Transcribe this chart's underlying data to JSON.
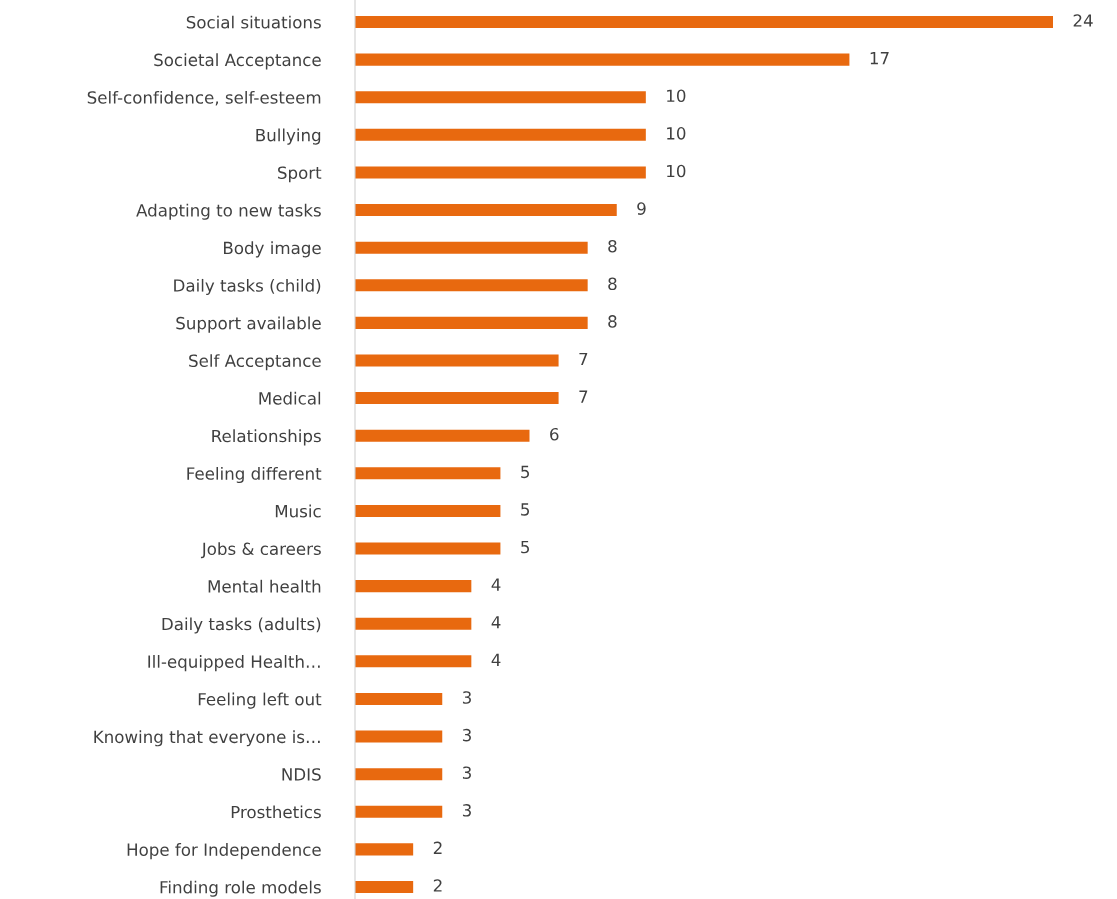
{
  "chart_data": {
    "type": "bar",
    "orientation": "horizontal",
    "categories": [
      "Social situations",
      "Societal Acceptance",
      "Self-confidence, self-esteem",
      "Bullying",
      "Sport",
      "Adapting to new tasks",
      "Body image",
      "Daily tasks (child)",
      "Support available",
      "Self Acceptance",
      "Medical",
      "Relationships",
      "Feeling different",
      "Music",
      "Jobs & careers",
      "Mental health",
      "Daily tasks (adults)",
      "Ill-equipped Health…",
      "Feeling left out",
      "Knowing that everyone is…",
      "NDIS",
      "Prosthetics",
      "Hope for Independence",
      "Finding role models"
    ],
    "values": [
      24,
      17,
      10,
      10,
      10,
      9,
      8,
      8,
      8,
      7,
      7,
      6,
      5,
      5,
      5,
      4,
      4,
      4,
      3,
      3,
      3,
      3,
      2,
      2
    ],
    "color": "#e8690f",
    "data_labels": true,
    "grid": false,
    "legend": false
  }
}
